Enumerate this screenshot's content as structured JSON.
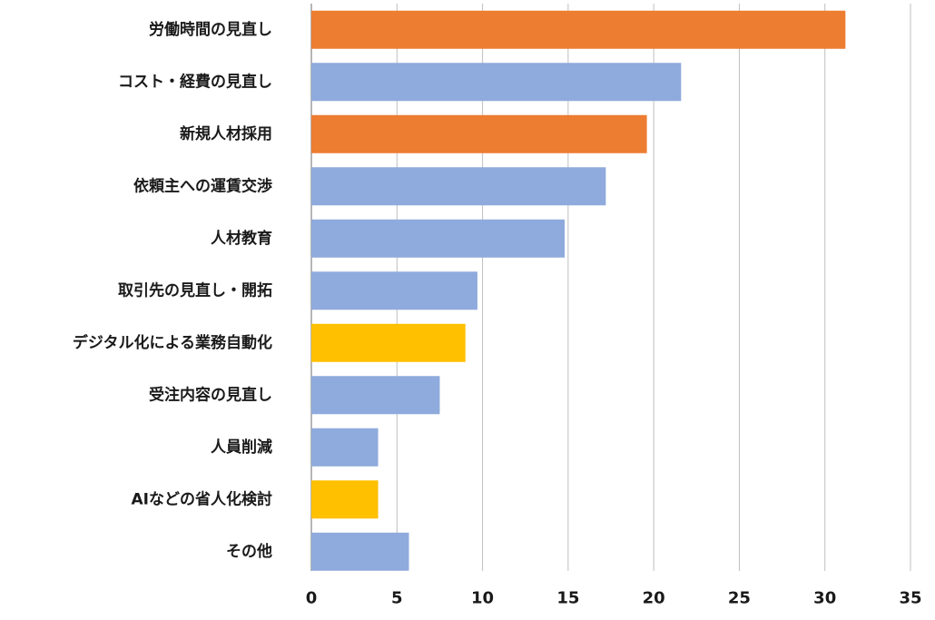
{
  "chart_data": {
    "type": "bar",
    "orientation": "horizontal",
    "categories": [
      "労働時間の見直し",
      "コスト・経費の見直し",
      "新規人材採用",
      "依頼主への運賃交渉",
      "人材教育",
      "取引先の見直し・開拓",
      "デジタル化による業務自動化",
      "受注内容の見直し",
      "人員削減",
      "AIなどの省人化検討",
      "その他"
    ],
    "values": [
      31.2,
      21.6,
      19.6,
      17.2,
      14.8,
      9.7,
      9.0,
      7.5,
      3.9,
      3.9,
      5.7
    ],
    "bar_colors": [
      "#ed7d31",
      "#8faadc",
      "#ed7d31",
      "#8faadc",
      "#8faadc",
      "#8faadc",
      "#ffc000",
      "#8faadc",
      "#8faadc",
      "#ffc000",
      "#8faadc"
    ],
    "xlim": [
      0,
      35
    ],
    "xticks": [
      0,
      5,
      10,
      15,
      20,
      25,
      30,
      35
    ],
    "title": "",
    "xlabel": "",
    "ylabel": "",
    "grid": "vertical",
    "gridline_color": "#bfbfbf",
    "axis_color": "#9e9e9e"
  }
}
